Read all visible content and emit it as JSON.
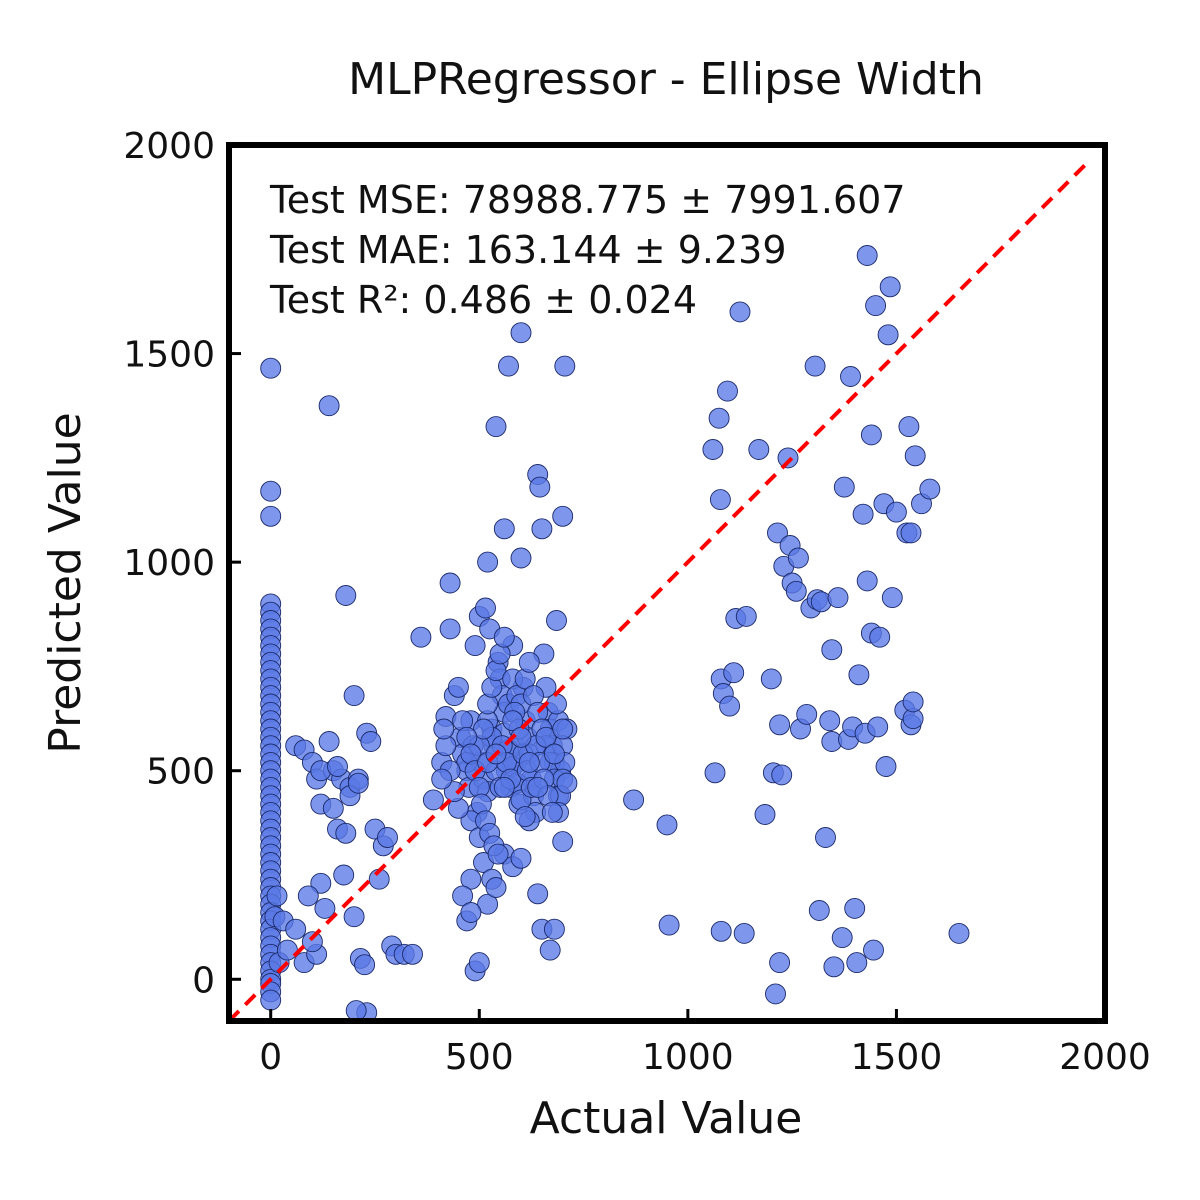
{
  "chart_data": {
    "type": "scatter",
    "title": "MLPRegressor - Ellipse Width",
    "xlabel": "Actual Value",
    "ylabel": "Predicted Value",
    "xlim": [
      -100,
      2000
    ],
    "ylim": [
      -100,
      2000
    ],
    "xticks": [
      0,
      500,
      1000,
      1500,
      2000
    ],
    "yticks": [
      0,
      500,
      1000,
      1500,
      2000
    ],
    "xtick_labels": [
      "0",
      "500",
      "1000",
      "1500",
      "2000"
    ],
    "ytick_labels": [
      "0",
      "500",
      "1000",
      "1500",
      "2000"
    ],
    "grid": false,
    "reference_line": {
      "type": "identity",
      "style": "dashed",
      "color": "#ff0000"
    },
    "marker_color": "#5a78e6",
    "annotations": [
      "Test MSE: 78988.775 ± 7991.607",
      "Test MAE: 163.144 ± 9.239",
      "Test R²: 0.486 ± 0.024"
    ],
    "points": [
      [
        0,
        1465
      ],
      [
        0,
        1170
      ],
      [
        0,
        1110
      ],
      [
        0,
        900
      ],
      [
        0,
        880
      ],
      [
        0,
        860
      ],
      [
        0,
        840
      ],
      [
        0,
        820
      ],
      [
        0,
        800
      ],
      [
        0,
        780
      ],
      [
        0,
        760
      ],
      [
        0,
        740
      ],
      [
        0,
        720
      ],
      [
        0,
        700
      ],
      [
        0,
        680
      ],
      [
        0,
        660
      ],
      [
        0,
        640
      ],
      [
        0,
        620
      ],
      [
        0,
        600
      ],
      [
        0,
        580
      ],
      [
        0,
        560
      ],
      [
        0,
        540
      ],
      [
        0,
        520
      ],
      [
        0,
        500
      ],
      [
        0,
        480
      ],
      [
        0,
        460
      ],
      [
        0,
        440
      ],
      [
        0,
        420
      ],
      [
        0,
        400
      ],
      [
        0,
        380
      ],
      [
        0,
        360
      ],
      [
        0,
        340
      ],
      [
        0,
        320
      ],
      [
        0,
        300
      ],
      [
        0,
        280
      ],
      [
        0,
        260
      ],
      [
        0,
        240
      ],
      [
        0,
        220
      ],
      [
        0,
        200
      ],
      [
        0,
        180
      ],
      [
        0,
        160
      ],
      [
        0,
        140
      ],
      [
        0,
        120
      ],
      [
        0,
        100
      ],
      [
        0,
        80
      ],
      [
        0,
        60
      ],
      [
        0,
        40
      ],
      [
        0,
        20
      ],
      [
        0,
        0
      ],
      [
        0,
        -10
      ],
      [
        0,
        -30
      ],
      [
        0,
        -50
      ],
      [
        10,
        150
      ],
      [
        15,
        200
      ],
      [
        20,
        40
      ],
      [
        30,
        140
      ],
      [
        40,
        70
      ],
      [
        60,
        120
      ],
      [
        80,
        40
      ],
      [
        110,
        60
      ],
      [
        60,
        560
      ],
      [
        80,
        550
      ],
      [
        100,
        520
      ],
      [
        110,
        480
      ],
      [
        120,
        230
      ],
      [
        130,
        170
      ],
      [
        140,
        1375
      ],
      [
        150,
        500
      ],
      [
        160,
        360
      ],
      [
        170,
        480
      ],
      [
        175,
        250
      ],
      [
        180,
        920
      ],
      [
        190,
        460
      ],
      [
        200,
        680
      ],
      [
        210,
        480
      ],
      [
        215,
        50
      ],
      [
        230,
        590
      ],
      [
        240,
        570
      ],
      [
        250,
        360
      ],
      [
        260,
        240
      ],
      [
        270,
        320
      ],
      [
        280,
        340
      ],
      [
        290,
        80
      ],
      [
        300,
        60
      ],
      [
        320,
        60
      ],
      [
        230,
        -80
      ],
      [
        120,
        420
      ],
      [
        140,
        570
      ],
      [
        150,
        410
      ],
      [
        200,
        150
      ],
      [
        180,
        350
      ],
      [
        205,
        -75
      ],
      [
        225,
        35
      ],
      [
        340,
        60
      ],
      [
        100,
        90
      ],
      [
        120,
        500
      ],
      [
        160,
        510
      ],
      [
        190,
        440
      ],
      [
        210,
        470
      ],
      [
        90,
        200
      ],
      [
        360,
        820
      ],
      [
        390,
        430
      ],
      [
        410,
        520
      ],
      [
        420,
        630
      ],
      [
        430,
        950
      ],
      [
        430,
        840
      ],
      [
        440,
        680
      ],
      [
        450,
        700
      ],
      [
        455,
        580
      ],
      [
        460,
        540
      ],
      [
        470,
        500
      ],
      [
        475,
        460
      ],
      [
        480,
        620
      ],
      [
        485,
        560
      ],
      [
        490,
        800
      ],
      [
        495,
        400
      ],
      [
        500,
        870
      ],
      [
        505,
        520
      ],
      [
        510,
        480
      ],
      [
        515,
        890
      ],
      [
        520,
        450
      ],
      [
        525,
        840
      ],
      [
        530,
        600
      ],
      [
        535,
        560
      ],
      [
        540,
        1325
      ],
      [
        545,
        760
      ],
      [
        550,
        720
      ],
      [
        555,
        680
      ],
      [
        560,
        640
      ],
      [
        565,
        500
      ],
      [
        570,
        1470
      ],
      [
        575,
        460
      ],
      [
        580,
        800
      ],
      [
        585,
        560
      ],
      [
        590,
        520
      ],
      [
        595,
        420
      ],
      [
        600,
        1010
      ],
      [
        605,
        700
      ],
      [
        610,
        620
      ],
      [
        615,
        580
      ],
      [
        620,
        540
      ],
      [
        625,
        480
      ],
      [
        630,
        440
      ],
      [
        635,
        400
      ],
      [
        640,
        1210
      ],
      [
        645,
        1180
      ],
      [
        650,
        1080
      ],
      [
        655,
        780
      ],
      [
        660,
        700
      ],
      [
        665,
        640
      ],
      [
        670,
        600
      ],
      [
        675,
        560
      ],
      [
        680,
        520
      ],
      [
        685,
        860
      ],
      [
        690,
        620
      ],
      [
        695,
        500
      ],
      [
        700,
        1110
      ],
      [
        705,
        1470
      ],
      [
        710,
        600
      ],
      [
        600,
        1550
      ],
      [
        560,
        1080
      ],
      [
        520,
        1000
      ],
      [
        470,
        520
      ],
      [
        480,
        380
      ],
      [
        500,
        340
      ],
      [
        510,
        280
      ],
      [
        530,
        240
      ],
      [
        520,
        180
      ],
      [
        540,
        220
      ],
      [
        560,
        300
      ],
      [
        580,
        270
      ],
      [
        600,
        290
      ],
      [
        620,
        380
      ],
      [
        640,
        205
      ],
      [
        650,
        120
      ],
      [
        670,
        70
      ],
      [
        680,
        120
      ],
      [
        700,
        330
      ],
      [
        480,
        240
      ],
      [
        490,
        20
      ],
      [
        500,
        40
      ],
      [
        470,
        140
      ],
      [
        460,
        200
      ],
      [
        480,
        160
      ],
      [
        450,
        410
      ],
      [
        440,
        450
      ],
      [
        430,
        500
      ],
      [
        420,
        560
      ],
      [
        415,
        600
      ],
      [
        410,
        480
      ],
      [
        560,
        590
      ],
      [
        570,
        550
      ],
      [
        580,
        510
      ],
      [
        590,
        470
      ],
      [
        600,
        430
      ],
      [
        610,
        390
      ],
      [
        520,
        620
      ],
      [
        530,
        580
      ],
      [
        540,
        500
      ],
      [
        550,
        460
      ],
      [
        500,
        560
      ],
      [
        510,
        600
      ],
      [
        520,
        660
      ],
      [
        530,
        700
      ],
      [
        540,
        740
      ],
      [
        550,
        780
      ],
      [
        560,
        820
      ],
      [
        570,
        660
      ],
      [
        580,
        720
      ],
      [
        590,
        680
      ],
      [
        600,
        660
      ],
      [
        610,
        720
      ],
      [
        620,
        760
      ],
      [
        630,
        680
      ],
      [
        640,
        640
      ],
      [
        650,
        600
      ],
      [
        660,
        560
      ],
      [
        670,
        520
      ],
      [
        680,
        480
      ],
      [
        690,
        440
      ],
      [
        700,
        560
      ],
      [
        705,
        520
      ],
      [
        700,
        480
      ],
      [
        695,
        440
      ],
      [
        690,
        400
      ],
      [
        710,
        470
      ],
      [
        460,
        620
      ],
      [
        470,
        580
      ],
      [
        480,
        540
      ],
      [
        490,
        500
      ],
      [
        500,
        460
      ],
      [
        505,
        420
      ],
      [
        515,
        380
      ],
      [
        525,
        350
      ],
      [
        535,
        320
      ],
      [
        545,
        300
      ],
      [
        555,
        560
      ],
      [
        565,
        520
      ],
      [
        575,
        480
      ],
      [
        585,
        640
      ],
      [
        595,
        600
      ],
      [
        605,
        540
      ],
      [
        615,
        500
      ],
      [
        625,
        460
      ],
      [
        635,
        560
      ],
      [
        645,
        520
      ],
      [
        655,
        480
      ],
      [
        665,
        440
      ],
      [
        675,
        400
      ],
      [
        685,
        660
      ],
      [
        520,
        520
      ],
      [
        540,
        540
      ],
      [
        560,
        460
      ],
      [
        580,
        620
      ],
      [
        600,
        580
      ],
      [
        620,
        520
      ],
      [
        640,
        460
      ],
      [
        660,
        580
      ],
      [
        680,
        540
      ],
      [
        700,
        600
      ],
      [
        870,
        430
      ],
      [
        950,
        370
      ],
      [
        955,
        130
      ],
      [
        1060,
        1270
      ],
      [
        1065,
        495
      ],
      [
        1075,
        1345
      ],
      [
        1078,
        1150
      ],
      [
        1080,
        115
      ],
      [
        1080,
        720
      ],
      [
        1085,
        685
      ],
      [
        1095,
        1410
      ],
      [
        1100,
        655
      ],
      [
        1110,
        735
      ],
      [
        1115,
        865
      ],
      [
        1125,
        1600
      ],
      [
        1135,
        110
      ],
      [
        1140,
        870
      ],
      [
        1170,
        1270
      ],
      [
        1185,
        395
      ],
      [
        1200,
        720
      ],
      [
        1205,
        495
      ],
      [
        1210,
        -35
      ],
      [
        1215,
        1070
      ],
      [
        1220,
        40
      ],
      [
        1220,
        610
      ],
      [
        1225,
        490
      ],
      [
        1230,
        990
      ],
      [
        1240,
        1250
      ],
      [
        1245,
        1040
      ],
      [
        1250,
        950
      ],
      [
        1260,
        930
      ],
      [
        1265,
        1010
      ],
      [
        1270,
        600
      ],
      [
        1285,
        635
      ],
      [
        1295,
        890
      ],
      [
        1305,
        1470
      ],
      [
        1310,
        910
      ],
      [
        1315,
        165
      ],
      [
        1320,
        905
      ],
      [
        1330,
        340
      ],
      [
        1340,
        620
      ],
      [
        1345,
        790
      ],
      [
        1345,
        570
      ],
      [
        1350,
        30
      ],
      [
        1360,
        915
      ],
      [
        1370,
        100
      ],
      [
        1375,
        1180
      ],
      [
        1385,
        575
      ],
      [
        1390,
        1445
      ],
      [
        1395,
        605
      ],
      [
        1400,
        170
      ],
      [
        1405,
        40
      ],
      [
        1410,
        730
      ],
      [
        1420,
        1115
      ],
      [
        1425,
        590
      ],
      [
        1430,
        1735
      ],
      [
        1430,
        955
      ],
      [
        1440,
        830
      ],
      [
        1440,
        1305
      ],
      [
        1445,
        70
      ],
      [
        1450,
        1615
      ],
      [
        1455,
        605
      ],
      [
        1460,
        820
      ],
      [
        1470,
        1140
      ],
      [
        1475,
        510
      ],
      [
        1480,
        1545
      ],
      [
        1485,
        1660
      ],
      [
        1490,
        915
      ],
      [
        1500,
        1120
      ],
      [
        1520,
        645
      ],
      [
        1525,
        1070
      ],
      [
        1530,
        1325
      ],
      [
        1535,
        1070
      ],
      [
        1535,
        610
      ],
      [
        1540,
        625
      ],
      [
        1540,
        665
      ],
      [
        1545,
        1255
      ],
      [
        1560,
        1140
      ],
      [
        1580,
        1175
      ],
      [
        1650,
        110
      ]
    ]
  }
}
